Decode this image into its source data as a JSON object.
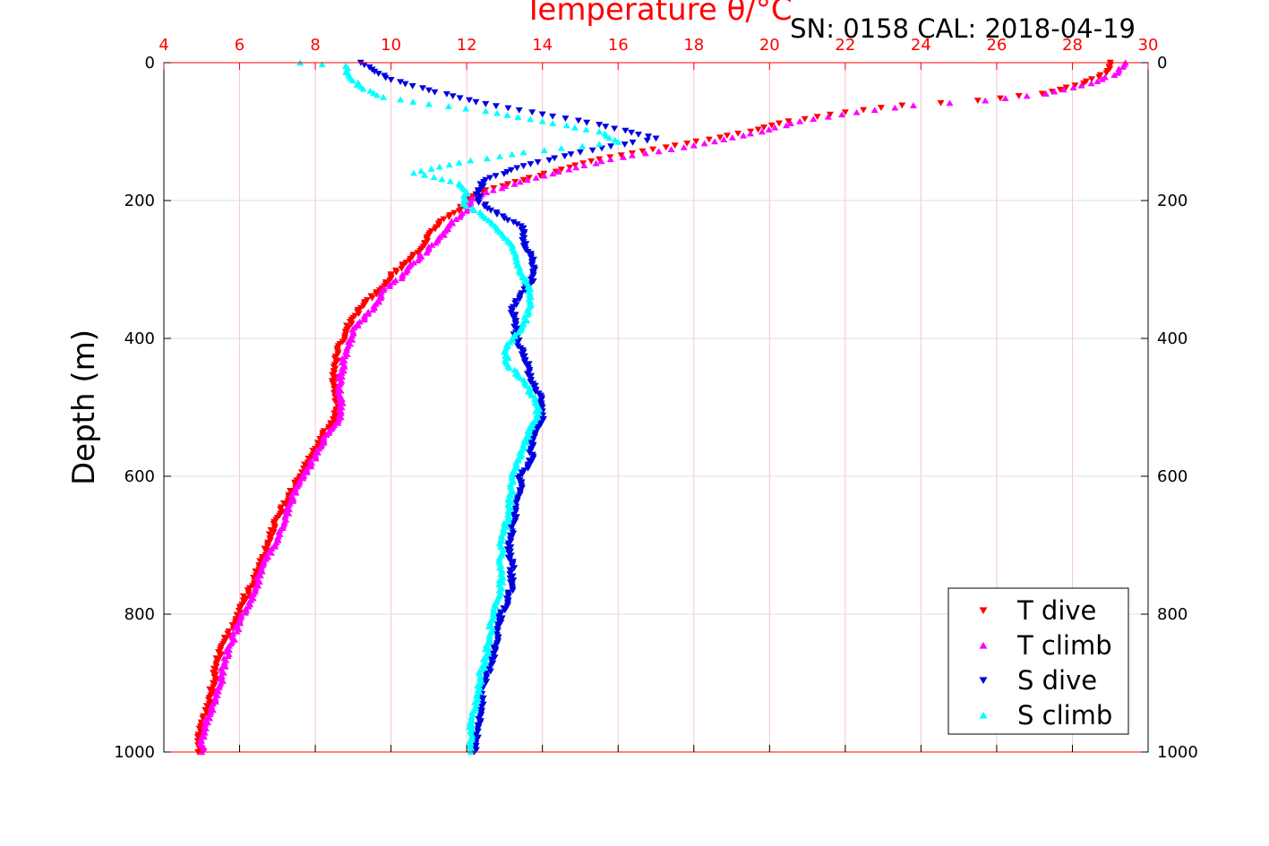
{
  "chart_data": {
    "type": "scatter",
    "title": "Temperature θ/°C",
    "subtitle": "SN: 0158  CAL: 2018-04-19",
    "xlabel_top": "Temperature θ/°C",
    "ylabel": "Depth (m)",
    "xlim": [
      4,
      30
    ],
    "ylim": [
      0,
      1000
    ],
    "y_reversed": true,
    "x_ticks": [
      "4",
      "6",
      "8",
      "10",
      "12",
      "14",
      "16",
      "18",
      "20",
      "22",
      "24",
      "26",
      "28",
      "30"
    ],
    "y_ticks": [
      "0",
      "200",
      "400",
      "600",
      "800",
      "1000"
    ],
    "grid": true,
    "legend_position": "bottom-right",
    "colors": {
      "t_dive": "#ff0000",
      "t_climb": "#ff00ff",
      "s_dive": "#0000dd",
      "s_climb": "#00ffff",
      "x_axis": "#ff0000",
      "grid": "#dddddd",
      "x_grid": "#f3c6d4"
    },
    "series": [
      {
        "name": "T dive",
        "marker": "triangle-down",
        "points": [
          [
            29.0,
            0
          ],
          [
            28.9,
            15
          ],
          [
            28.3,
            30
          ],
          [
            27.2,
            45
          ],
          [
            25.5,
            55
          ],
          [
            23.5,
            62
          ],
          [
            22.0,
            72
          ],
          [
            20.5,
            85
          ],
          [
            19.5,
            100
          ],
          [
            17.5,
            120
          ],
          [
            15.5,
            140
          ],
          [
            14.5,
            155
          ],
          [
            13.5,
            170
          ],
          [
            12.5,
            185
          ],
          [
            12.0,
            200
          ],
          [
            11.8,
            215
          ],
          [
            11.3,
            230
          ],
          [
            11.0,
            250
          ],
          [
            10.8,
            270
          ],
          [
            10.4,
            290
          ],
          [
            10.0,
            310
          ],
          [
            9.7,
            330
          ],
          [
            9.3,
            350
          ],
          [
            9.0,
            370
          ],
          [
            8.8,
            390
          ],
          [
            8.6,
            420
          ],
          [
            8.5,
            450
          ],
          [
            8.5,
            470
          ],
          [
            8.6,
            500
          ],
          [
            8.5,
            520
          ],
          [
            8.2,
            540
          ],
          [
            8.0,
            560
          ],
          [
            7.8,
            580
          ],
          [
            7.6,
            600
          ],
          [
            7.3,
            630
          ],
          [
            7.0,
            660
          ],
          [
            6.8,
            690
          ],
          [
            6.6,
            720
          ],
          [
            6.4,
            750
          ],
          [
            6.1,
            780
          ],
          [
            5.9,
            810
          ],
          [
            5.6,
            840
          ],
          [
            5.4,
            870
          ],
          [
            5.3,
            900
          ],
          [
            5.2,
            930
          ],
          [
            5.0,
            960
          ],
          [
            4.9,
            990
          ],
          [
            4.9,
            1000
          ]
        ]
      },
      {
        "name": "T climb",
        "marker": "triangle-up",
        "points": [
          [
            29.4,
            0
          ],
          [
            29.2,
            15
          ],
          [
            28.5,
            30
          ],
          [
            27.3,
            45
          ],
          [
            25.7,
            55
          ],
          [
            23.8,
            62
          ],
          [
            22.3,
            72
          ],
          [
            20.8,
            85
          ],
          [
            19.8,
            100
          ],
          [
            18.0,
            120
          ],
          [
            15.8,
            140
          ],
          [
            14.7,
            155
          ],
          [
            13.6,
            170
          ],
          [
            12.7,
            185
          ],
          [
            12.1,
            200
          ],
          [
            12.0,
            215
          ],
          [
            11.6,
            230
          ],
          [
            11.4,
            250
          ],
          [
            11.0,
            270
          ],
          [
            10.6,
            290
          ],
          [
            10.3,
            310
          ],
          [
            9.8,
            330
          ],
          [
            9.6,
            350
          ],
          [
            9.3,
            370
          ],
          [
            9.0,
            390
          ],
          [
            8.8,
            420
          ],
          [
            8.7,
            450
          ],
          [
            8.6,
            470
          ],
          [
            8.7,
            500
          ],
          [
            8.6,
            520
          ],
          [
            8.3,
            540
          ],
          [
            8.1,
            560
          ],
          [
            7.9,
            580
          ],
          [
            7.7,
            600
          ],
          [
            7.4,
            630
          ],
          [
            7.2,
            660
          ],
          [
            7.0,
            690
          ],
          [
            6.7,
            720
          ],
          [
            6.5,
            750
          ],
          [
            6.3,
            780
          ],
          [
            6.0,
            810
          ],
          [
            5.8,
            840
          ],
          [
            5.6,
            870
          ],
          [
            5.5,
            900
          ],
          [
            5.3,
            930
          ],
          [
            5.1,
            960
          ],
          [
            5.0,
            990
          ],
          [
            5.0,
            1000
          ]
        ]
      },
      {
        "name": "S dive",
        "marker": "triangle-down",
        "points": [
          [
            9.2,
            0
          ],
          [
            9.5,
            10
          ],
          [
            10.0,
            25
          ],
          [
            11.0,
            40
          ],
          [
            12.5,
            60
          ],
          [
            14.0,
            75
          ],
          [
            15.5,
            90
          ],
          [
            17.0,
            110
          ],
          [
            15.0,
            130
          ],
          [
            13.5,
            150
          ],
          [
            12.5,
            170
          ],
          [
            12.3,
            185
          ],
          [
            12.3,
            200
          ],
          [
            12.8,
            220
          ],
          [
            13.5,
            240
          ],
          [
            13.5,
            260
          ],
          [
            13.7,
            280
          ],
          [
            13.8,
            300
          ],
          [
            13.7,
            320
          ],
          [
            13.4,
            340
          ],
          [
            13.2,
            360
          ],
          [
            13.3,
            380
          ],
          [
            13.3,
            400
          ],
          [
            13.5,
            420
          ],
          [
            13.6,
            440
          ],
          [
            13.7,
            460
          ],
          [
            13.9,
            480
          ],
          [
            14.0,
            500
          ],
          [
            14.0,
            520
          ],
          [
            13.8,
            540
          ],
          [
            13.7,
            560
          ],
          [
            13.7,
            580
          ],
          [
            13.4,
            600
          ],
          [
            13.4,
            620
          ],
          [
            13.3,
            650
          ],
          [
            13.2,
            680
          ],
          [
            13.1,
            700
          ],
          [
            13.2,
            730
          ],
          [
            13.2,
            760
          ],
          [
            13.1,
            780
          ],
          [
            12.9,
            800
          ],
          [
            12.8,
            830
          ],
          [
            12.7,
            860
          ],
          [
            12.6,
            880
          ],
          [
            12.4,
            910
          ],
          [
            12.4,
            940
          ],
          [
            12.3,
            970
          ],
          [
            12.2,
            1000
          ]
        ]
      },
      {
        "name": "S climb",
        "marker": "triangle-up",
        "points": [
          [
            7.6,
            0
          ],
          [
            8.8,
            5
          ],
          [
            8.9,
            20
          ],
          [
            9.2,
            35
          ],
          [
            9.8,
            50
          ],
          [
            11.0,
            60
          ],
          [
            12.5,
            70
          ],
          [
            14.0,
            85
          ],
          [
            15.5,
            100
          ],
          [
            16.0,
            115
          ],
          [
            13.5,
            130
          ],
          [
            11.8,
            145
          ],
          [
            10.6,
            160
          ],
          [
            11.8,
            175
          ],
          [
            12.0,
            190
          ],
          [
            11.9,
            205
          ],
          [
            12.4,
            220
          ],
          [
            12.8,
            240
          ],
          [
            13.1,
            260
          ],
          [
            13.3,
            280
          ],
          [
            13.4,
            300
          ],
          [
            13.6,
            320
          ],
          [
            13.7,
            340
          ],
          [
            13.6,
            360
          ],
          [
            13.5,
            380
          ],
          [
            13.2,
            400
          ],
          [
            13.0,
            420
          ],
          [
            13.1,
            440
          ],
          [
            13.5,
            460
          ],
          [
            13.7,
            480
          ],
          [
            13.9,
            500
          ],
          [
            13.8,
            520
          ],
          [
            13.6,
            540
          ],
          [
            13.5,
            560
          ],
          [
            13.3,
            580
          ],
          [
            13.2,
            600
          ],
          [
            13.2,
            620
          ],
          [
            13.1,
            650
          ],
          [
            13.0,
            680
          ],
          [
            12.9,
            700
          ],
          [
            12.9,
            730
          ],
          [
            12.9,
            760
          ],
          [
            12.8,
            780
          ],
          [
            12.7,
            800
          ],
          [
            12.6,
            830
          ],
          [
            12.5,
            860
          ],
          [
            12.4,
            880
          ],
          [
            12.3,
            910
          ],
          [
            12.2,
            940
          ],
          [
            12.1,
            970
          ],
          [
            12.1,
            1000
          ]
        ]
      }
    ]
  }
}
